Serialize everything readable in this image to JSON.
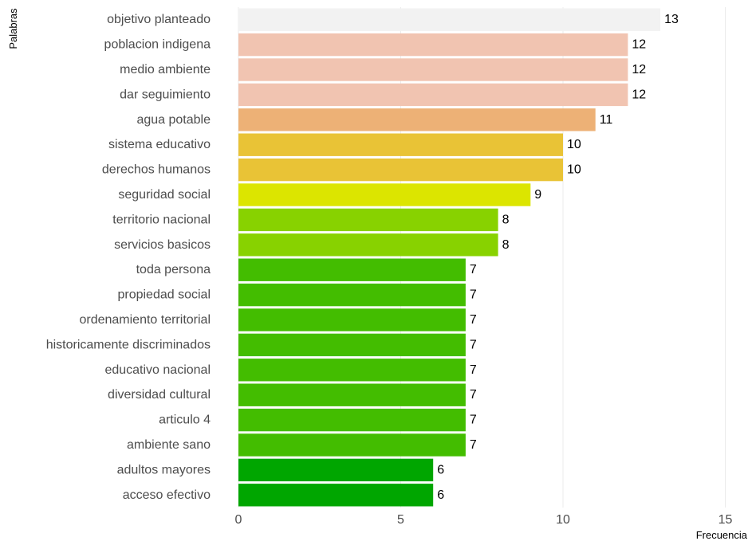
{
  "chart_data": {
    "type": "bar",
    "orientation": "horizontal",
    "xlabel": "Frecuencia",
    "ylabel": "Palabras",
    "xlim": [
      0,
      15
    ],
    "xticks": [
      0,
      5,
      10,
      15
    ],
    "grid": true,
    "legend": "none",
    "categories": [
      "objetivo planteado",
      "poblacion indigena",
      "medio ambiente",
      "dar seguimiento",
      "agua potable",
      "sistema educativo",
      "derechos humanos",
      "seguridad social",
      "territorio nacional",
      "servicios basicos",
      "toda persona",
      "propiedad social",
      "ordenamiento territorial",
      "historicamente discriminados",
      "educativo nacional",
      "diversidad cultural",
      "articulo 4",
      "ambiente sano",
      "adultos mayores",
      "acceso efectivo"
    ],
    "values": [
      13,
      12,
      12,
      12,
      11,
      10,
      10,
      9,
      8,
      8,
      7,
      7,
      7,
      7,
      7,
      7,
      7,
      7,
      6,
      6
    ],
    "colors": {
      "13": "#f2f2f2",
      "12": "#f1c4b1",
      "11": "#edb176",
      "10": "#e9c336",
      "9": "#dce500",
      "8": "#88d200",
      "7": "#43bd00",
      "6": "#00a600"
    }
  }
}
